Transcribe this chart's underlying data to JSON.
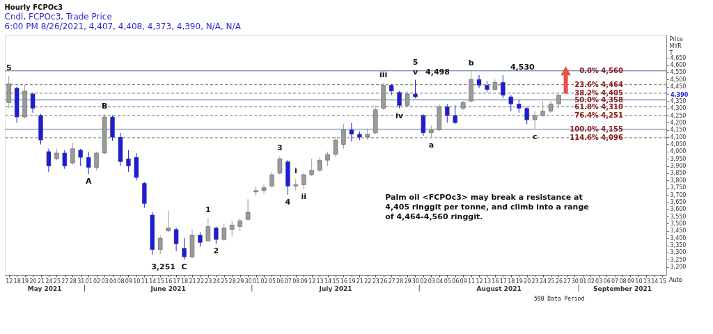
{
  "chart_data": {
    "type": "candlestick",
    "title": "Hourly FCPOc3",
    "subtitle": "Cndl, FCPOc3, Trade Price\n6:00 PM 8/26/2021, 4,407, 4,408, 4,373, 4,390, N/A, N/A",
    "ylabel": "Price MYR T",
    "categories": [
      "12",
      "18",
      "19",
      "20",
      "21",
      "24",
      "25",
      "27",
      "28",
      "31",
      "01",
      "02",
      "03",
      "04",
      "08",
      "09",
      "10",
      "11",
      "14",
      "15",
      "16",
      "17",
      "18",
      "21",
      "22",
      "23",
      "24",
      "25",
      "28",
      "29",
      "30",
      "01",
      "02",
      "05",
      "06",
      "07",
      "08",
      "09",
      "12",
      "13",
      "14",
      "15",
      "16",
      "19",
      "21",
      "22",
      "23",
      "26",
      "27",
      "28",
      "29",
      "30",
      "02",
      "03",
      "04",
      "05",
      "06",
      "09",
      "11",
      "12",
      "13",
      "16",
      "17",
      "18",
      "19",
      "20",
      "23",
      "24",
      "25",
      "26",
      "27",
      "30",
      "01",
      "02",
      "03",
      "06",
      "07",
      "08",
      "09",
      "10",
      "13",
      "14",
      "15"
    ],
    "ohlc": [
      [
        4340,
        4525,
        4300,
        4470
      ],
      [
        4440,
        4450,
        4200,
        4240
      ],
      [
        4240,
        4465,
        4230,
        4420
      ],
      [
        4400,
        4410,
        4270,
        4300
      ],
      [
        4250,
        4260,
        4050,
        4080
      ],
      [
        4000,
        4020,
        3860,
        3900
      ],
      [
        3950,
        4020,
        3940,
        3990
      ],
      [
        3990,
        4010,
        3880,
        3900
      ],
      [
        3920,
        4060,
        3910,
        4020
      ],
      [
        4010,
        4020,
        3900,
        3960
      ],
      [
        3960,
        4000,
        3845,
        3890
      ],
      [
        3890,
        4000,
        3870,
        3990
      ],
      [
        3990,
        4260,
        3980,
        4240
      ],
      [
        4240,
        4250,
        4075,
        4100
      ],
      [
        4100,
        4130,
        3900,
        3930
      ],
      [
        3950,
        4010,
        3860,
        3900
      ],
      [
        3960,
        3990,
        3800,
        3820
      ],
      [
        3780,
        3790,
        3610,
        3640
      ],
      [
        3560,
        3580,
        3285,
        3320
      ],
      [
        3320,
        3420,
        3290,
        3400
      ],
      [
        3450,
        3590,
        3440,
        3470
      ],
      [
        3460,
        3470,
        3310,
        3360
      ],
      [
        3330,
        3400,
        3251,
        3270
      ],
      [
        3270,
        3460,
        3260,
        3420
      ],
      [
        3420,
        3440,
        3340,
        3370
      ],
      [
        3380,
        3540,
        3380,
        3480
      ],
      [
        3470,
        3480,
        3360,
        3390
      ],
      [
        3390,
        3500,
        3380,
        3470
      ],
      [
        3460,
        3520,
        3410,
        3490
      ],
      [
        3480,
        3540,
        3450,
        3520
      ],
      [
        3530,
        3670,
        3520,
        3580
      ],
      [
        3720,
        3760,
        3690,
        3730
      ],
      [
        3730,
        3770,
        3710,
        3750
      ],
      [
        3760,
        3860,
        3750,
        3840
      ],
      [
        3850,
        3970,
        3840,
        3950
      ],
      [
        3930,
        3940,
        3700,
        3760
      ],
      [
        3760,
        3810,
        3730,
        3770
      ],
      [
        3770,
        3850,
        3740,
        3840
      ],
      [
        3840,
        3950,
        3830,
        3870
      ],
      [
        3870,
        3960,
        3860,
        3940
      ],
      [
        3940,
        4000,
        3900,
        3980
      ],
      [
        3980,
        4100,
        3960,
        4080
      ],
      [
        4050,
        4190,
        4020,
        4150
      ],
      [
        4150,
        4200,
        4070,
        4120
      ],
      [
        4120,
        4140,
        4080,
        4100
      ],
      [
        4100,
        4160,
        4080,
        4120
      ],
      [
        4130,
        4320,
        4120,
        4290
      ],
      [
        4300,
        4475,
        4290,
        4460
      ],
      [
        4460,
        4470,
        4390,
        4420
      ],
      [
        4410,
        4420,
        4300,
        4320
      ],
      [
        4320,
        4420,
        4310,
        4400
      ],
      [
        4400,
        4498,
        4370,
        4380
      ],
      [
        4250,
        4260,
        4110,
        4130
      ],
      [
        4130,
        4180,
        4095,
        4150
      ],
      [
        4150,
        4330,
        4140,
        4310
      ],
      [
        4310,
        4330,
        4200,
        4250
      ],
      [
        4250,
        4320,
        4190,
        4200
      ],
      [
        4300,
        4350,
        4290,
        4340
      ],
      [
        4350,
        4560,
        4340,
        4500
      ],
      [
        4500,
        4530,
        4440,
        4460
      ],
      [
        4460,
        4490,
        4410,
        4430
      ],
      [
        4430,
        4500,
        4420,
        4480
      ],
      [
        4480,
        4530,
        4370,
        4390
      ],
      [
        4380,
        4390,
        4280,
        4330
      ],
      [
        4330,
        4360,
        4270,
        4300
      ],
      [
        4300,
        4310,
        4190,
        4220
      ],
      [
        4220,
        4280,
        4155,
        4250
      ],
      [
        4250,
        4350,
        4240,
        4280
      ],
      [
        4280,
        4350,
        4270,
        4330
      ],
      [
        4330,
        4408,
        4300,
        4390
      ],
      null,
      null,
      null,
      null,
      null,
      null,
      null,
      null,
      null,
      null,
      null,
      null,
      null
    ],
    "colors": [
      "#9a9a9a",
      "#1c1cdb",
      "#9a9a9a",
      "#1c1cdb",
      "#1c1cdb",
      "#1c1cdb",
      "#9a9a9a",
      "#1c1cdb",
      "#9a9a9a",
      "#1c1cdb",
      "#1c1cdb",
      "#9a9a9a",
      "#9a9a9a",
      "#1c1cdb",
      "#1c1cdb",
      "#1c1cdb",
      "#1c1cdb",
      "#1c1cdb",
      "#1c1cdb",
      "#9a9a9a",
      "#9a9a9a",
      "#1c1cdb",
      "#1c1cdb",
      "#9a9a9a",
      "#1c1cdb",
      "#9a9a9a",
      "#1c1cdb",
      "#9a9a9a",
      "#9a9a9a",
      "#9a9a9a",
      "#9a9a9a",
      "#9a9a9a",
      "#9a9a9a",
      "#9a9a9a",
      "#9a9a9a",
      "#1c1cdb",
      "#9a9a9a",
      "#9a9a9a",
      "#9a9a9a",
      "#9a9a9a",
      "#9a9a9a",
      "#9a9a9a",
      "#9a9a9a",
      "#1c1cdb",
      "#1c1cdb",
      "#9a9a9a",
      "#9a9a9a",
      "#9a9a9a",
      "#1c1cdb",
      "#1c1cdb",
      "#9a9a9a",
      "#1c1cdb",
      "#1c1cdb",
      "#9a9a9a",
      "#9a9a9a",
      "#1c1cdb",
      "#1c1cdb",
      "#9a9a9a",
      "#9a9a9a",
      "#1c1cdb",
      "#1c1cdb",
      "#9a9a9a",
      "#1c1cdb",
      "#1c1cdb",
      "#1c1cdb",
      "#1c1cdb",
      "#9a9a9a",
      "#9a9a9a",
      "#9a9a9a",
      "#9a9a9a",
      null,
      null,
      null,
      null,
      null,
      null,
      null,
      null,
      null,
      null,
      null,
      null,
      null
    ],
    "ylim": [
      3145,
      4810
    ],
    "yticks": [
      {
        "value": 3200,
        "label": "3,200"
      },
      {
        "value": 3250,
        "label": "3,250"
      },
      {
        "value": 3300,
        "label": "3,300"
      },
      {
        "value": 3350,
        "label": "3,350"
      },
      {
        "value": 3400,
        "label": "3,400"
      },
      {
        "value": 3450,
        "label": "3,450"
      },
      {
        "value": 3500,
        "label": "3,500"
      },
      {
        "value": 3550,
        "label": "3,550"
      },
      {
        "value": 3600,
        "label": "3,600"
      },
      {
        "value": 3650,
        "label": "3,650"
      },
      {
        "value": 3700,
        "label": "3,700"
      },
      {
        "value": 3750,
        "label": "3,750"
      },
      {
        "value": 3800,
        "label": "3,800"
      },
      {
        "value": 3850,
        "label": "3,850"
      },
      {
        "value": 3900,
        "label": "3,900"
      },
      {
        "value": 3950,
        "label": "3,950"
      },
      {
        "value": 4000,
        "label": "4,000"
      },
      {
        "value": 4050,
        "label": "4,050"
      },
      {
        "value": 4100,
        "label": "4,100"
      },
      {
        "value": 4150,
        "label": "4,150"
      },
      {
        "value": 4200,
        "label": "4,200"
      },
      {
        "value": 4250,
        "label": "4,250"
      },
      {
        "value": 4300,
        "label": "4,300"
      },
      {
        "value": 4350,
        "label": "4,350"
      },
      {
        "value": 4400,
        "label": null
      },
      {
        "value": 4450,
        "label": "4,450"
      },
      {
        "value": 4500,
        "label": "4,500"
      },
      {
        "value": 4550,
        "label": "4,550"
      },
      {
        "value": 4600,
        "label": "4,600"
      },
      {
        "value": 4650,
        "label": "4,650"
      }
    ],
    "ref_lines": [
      {
        "axis": "y",
        "value": 4560,
        "label": "0.0%   4,560",
        "color": "#4f6fa0",
        "line_style": "solid"
      },
      {
        "axis": "y",
        "value": 4464,
        "label": "23.6%   4,464",
        "color": "#6e6e6e",
        "line_style": "dashed"
      },
      {
        "axis": "y",
        "value": 4405,
        "label": "38.2%   4,405",
        "color": "#6e6e6e",
        "line_style": "dashed"
      },
      {
        "axis": "y",
        "value": 4358,
        "label": "50.0%   4,358",
        "color": "#4f6fa0",
        "line_style": "solid"
      },
      {
        "axis": "y",
        "value": 4310,
        "label": "61.8%   4,310",
        "color": "#6e6e6e",
        "line_style": "dashed"
      },
      {
        "axis": "y",
        "value": 4251,
        "label": "76.4%   4,251",
        "color": "#6e6e6e",
        "line_style": "dashed"
      },
      {
        "axis": "y",
        "value": 4155,
        "label": "100.0%  4,155",
        "color": "#4f6fa0",
        "line_style": "solid"
      },
      {
        "axis": "y",
        "value": 4096,
        "label": "114.6%  4,096",
        "color": "#6e6e6e",
        "line_style": "dashed"
      }
    ],
    "annotations": [
      {
        "text": "5",
        "x": "12",
        "y": 4525
      },
      {
        "text": "B",
        "x": "03",
        "y": 4260
      },
      {
        "text": "A",
        "x": "01",
        "y": 3845
      },
      {
        "text": "1",
        "x": "23",
        "y": 3540
      },
      {
        "text": "3",
        "x": "06",
        "y": 3970
      },
      {
        "text": "4",
        "x": "07",
        "y": 3700
      },
      {
        "text": "iii",
        "x": "26",
        "y": 4475
      },
      "3,251",
      "C",
      "2",
      "i",
      "ii",
      "iv",
      "v",
      "5",
      "4,498",
      "a",
      "b",
      "4,530",
      "c",
      "May 2021",
      "June 2021",
      "July 2021",
      "August 2021",
      "September 2021",
      "4,390",
      "Palm oil <FCPOc3> may break a resistance at 4,405 ringgit per tonne, and climb into a range of 4,464-4,560 ringgit.",
      "590 Data Period",
      "Auto"
    ]
  }
}
